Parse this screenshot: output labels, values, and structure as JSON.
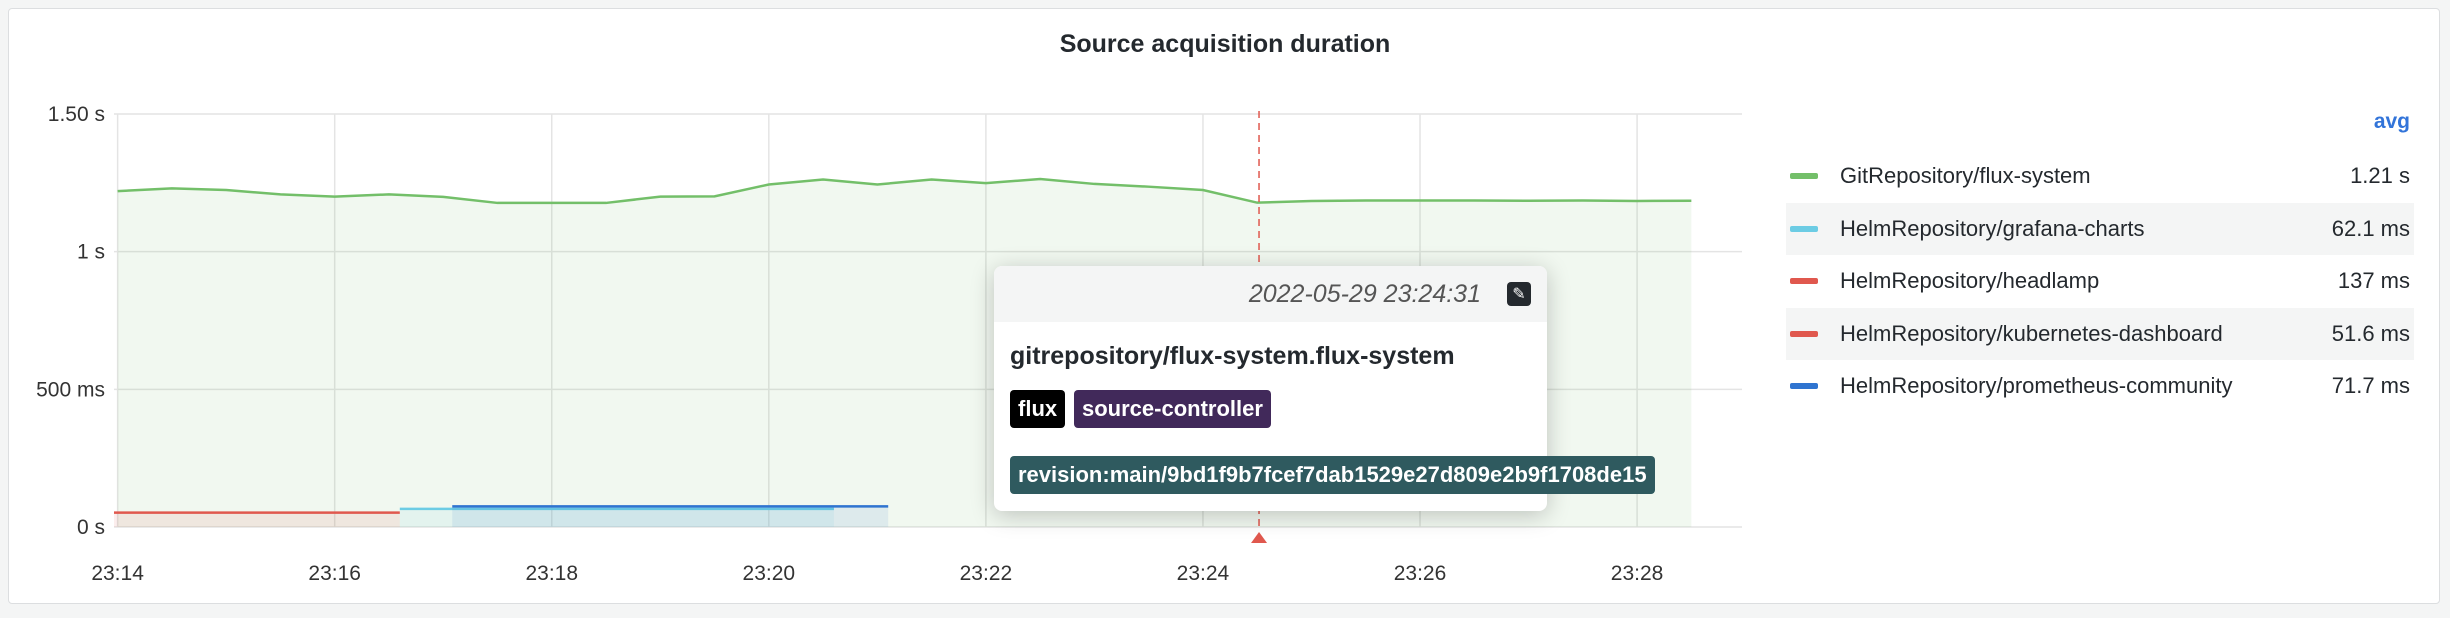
{
  "panel": {
    "title": "Source acquisition duration"
  },
  "chart_data": {
    "type": "line",
    "title": "Source acquisition duration",
    "xlabel": "",
    "ylabel": "",
    "x_ticks": [
      "23:14",
      "23:16",
      "23:18",
      "23:20",
      "23:22",
      "23:24",
      "23:26",
      "23:28"
    ],
    "x_range": [
      "23:13:58",
      "23:28:58"
    ],
    "y_ticks": [
      {
        "value": 0,
        "label": "0 s"
      },
      {
        "value": 0.5,
        "label": "500 ms"
      },
      {
        "value": 1,
        "label": "1 s"
      },
      {
        "value": 1.5,
        "label": "1.50 s"
      }
    ],
    "ylim": [
      0,
      1.5
    ],
    "y_unit": "s",
    "grid": true,
    "legend_placement": "right",
    "series": [
      {
        "name": "GitRepository/flux-system",
        "color": "#73bf69",
        "fill": true,
        "x": [
          "23:14:00",
          "23:14:30",
          "23:15:00",
          "23:15:30",
          "23:16:00",
          "23:16:30",
          "23:17:00",
          "23:17:30",
          "23:18:00",
          "23:18:30",
          "23:19:00",
          "23:19:30",
          "23:20:00",
          "23:20:30",
          "23:21:00",
          "23:21:30",
          "23:22:00",
          "23:22:30",
          "23:23:00",
          "23:23:30",
          "23:24:00",
          "23:24:30",
          "23:25:00",
          "23:25:30",
          "23:26:00",
          "23:26:30",
          "23:27:00",
          "23:27:30",
          "23:28:00",
          "23:28:30"
        ],
        "y": [
          1.22,
          1.23,
          1.224,
          1.208,
          1.2,
          1.208,
          1.199,
          1.177,
          1.177,
          1.177,
          1.2,
          1.201,
          1.244,
          1.262,
          1.244,
          1.262,
          1.249,
          1.264,
          1.246,
          1.236,
          1.224,
          1.178,
          1.184,
          1.186,
          1.186,
          1.186,
          1.185,
          1.186,
          1.184,
          1.185
        ]
      },
      {
        "name": "HelmRepository/grafana-charts",
        "color": "#6ccce4",
        "fill": true,
        "x": [
          "23:16:36",
          "23:20:36"
        ],
        "y": [
          0.066,
          0.066
        ]
      },
      {
        "name": "HelmRepository/headlamp",
        "color": "#e0584e",
        "fill": true,
        "x": [],
        "y": []
      },
      {
        "name": "HelmRepository/kubernetes-dashboard",
        "color": "#e0584e",
        "fill": true,
        "x": [
          "23:13:58",
          "23:16:36"
        ],
        "y": [
          0.052,
          0.052
        ]
      },
      {
        "name": "HelmRepository/prometheus-community",
        "color": "#2f74d0",
        "fill": true,
        "x": [
          "23:17:05",
          "23:21:06"
        ],
        "y": [
          0.075,
          0.075
        ]
      }
    ],
    "annotation": {
      "time": "23:24:31",
      "color": "#e0584e"
    }
  },
  "legend": {
    "column_header": "avg",
    "items": [
      {
        "name": "GitRepository/flux-system",
        "avg": "1.21 s",
        "color": "#73bf69"
      },
      {
        "name": "HelmRepository/grafana-charts",
        "avg": "62.1 ms",
        "color": "#6ccce4"
      },
      {
        "name": "HelmRepository/headlamp",
        "avg": "137 ms",
        "color": "#e0584e"
      },
      {
        "name": "HelmRepository/kubernetes-dashboard",
        "avg": "51.6 ms",
        "color": "#e0584e"
      },
      {
        "name": "HelmRepository/prometheus-community",
        "avg": "71.7 ms",
        "color": "#2f74d0"
      }
    ]
  },
  "tooltip": {
    "timestamp": "2022-05-29 23:24:31",
    "edit_icon": "pencil-icon",
    "text": "gitrepository/flux-system.flux-system",
    "tags": [
      {
        "label": "flux",
        "color": "#000000"
      },
      {
        "label": "source-controller",
        "color": "#41295a"
      },
      {
        "label": "revision:main/9bd1f9b7fcef7dab1529e27d809e2b9f1708de15",
        "color": "#2f5a5f"
      }
    ]
  }
}
